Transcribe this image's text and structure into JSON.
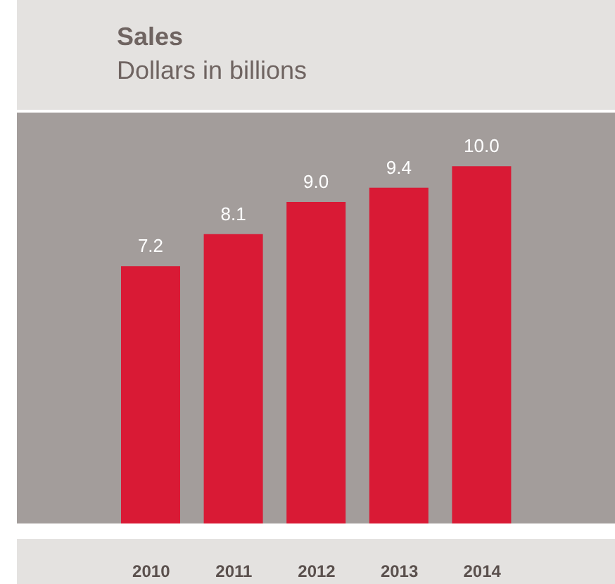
{
  "chart_data": {
    "type": "bar",
    "title": "Sales",
    "subtitle": "Dollars in billions",
    "categories": [
      "2010",
      "2011",
      "2012",
      "2013",
      "2014"
    ],
    "values": [
      7.2,
      8.1,
      9.0,
      9.4,
      10.0
    ],
    "value_labels": [
      "7.2",
      "8.1",
      "9.0",
      "9.4",
      "10.0"
    ],
    "color": "#d91a35"
  }
}
